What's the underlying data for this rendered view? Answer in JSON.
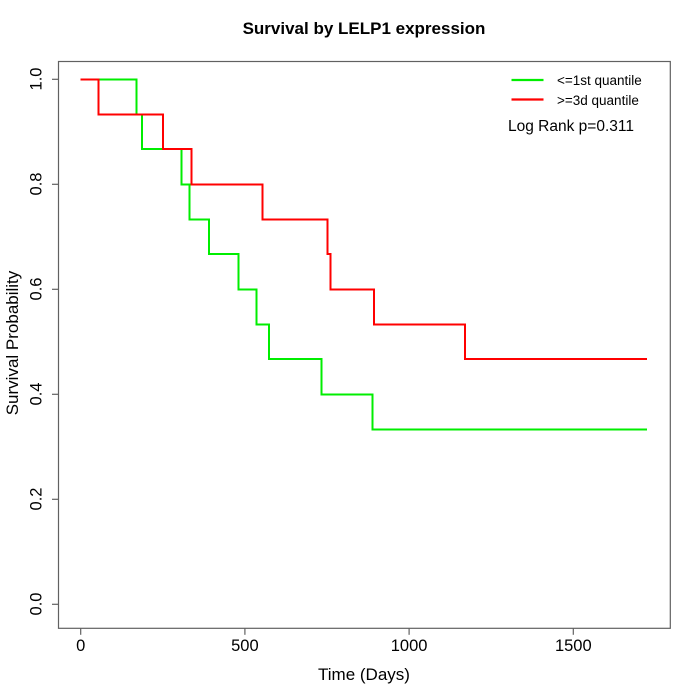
{
  "chart_data": {
    "type": "line",
    "variant": "kaplan-meier-step-curve",
    "title": "Survival by LELP1 expression",
    "xlabel": "Time (Days)",
    "ylabel": "Survival Probability",
    "x_ticks": [
      0,
      500,
      1000,
      1500
    ],
    "x_tick_labels": [
      "0",
      "500",
      "1000",
      "1500"
    ],
    "y_ticks": [
      0.0,
      0.2,
      0.4,
      0.6,
      0.8,
      1.0
    ],
    "y_tick_labels": [
      "0.0",
      "0.2",
      "0.4",
      "0.6",
      "0.8",
      "1.0"
    ],
    "xlim": [
      -70,
      1790
    ],
    "ylim": [
      -0.045,
      1.045
    ],
    "grid": false,
    "axis_color": "#616161",
    "legend": {
      "position": "top-right",
      "entries": [
        {
          "label": "<=1st quantile",
          "color": "#00ee00"
        },
        {
          "label": ">=3d quantile",
          "color": "#ff0000"
        }
      ]
    },
    "annotation": "Log Rank p=0.311",
    "series": [
      {
        "name": "<=1st quantile",
        "color": "#00ee00",
        "start": [
          0,
          1.0
        ],
        "steps": [
          [
            170,
            0.933
          ],
          [
            186,
            0.867
          ],
          [
            307,
            0.8
          ],
          [
            331,
            0.733
          ],
          [
            391,
            0.667
          ],
          [
            480,
            0.6
          ],
          [
            536,
            0.533
          ],
          [
            574,
            0.467
          ],
          [
            733,
            0.4
          ],
          [
            889,
            0.333
          ]
        ],
        "end_time": 1725,
        "end_survival": 0.333
      },
      {
        "name": ">=3d quantile",
        "color": "#ff0000",
        "start": [
          0,
          1.0
        ],
        "steps": [
          [
            54,
            0.933
          ],
          [
            251,
            0.867
          ],
          [
            338,
            0.8
          ],
          [
            554,
            0.733
          ],
          [
            751,
            0.667
          ],
          [
            761,
            0.6
          ],
          [
            893,
            0.533
          ],
          [
            1170,
            0.467
          ]
        ],
        "end_time": 1725,
        "end_survival": 0.467
      }
    ]
  }
}
